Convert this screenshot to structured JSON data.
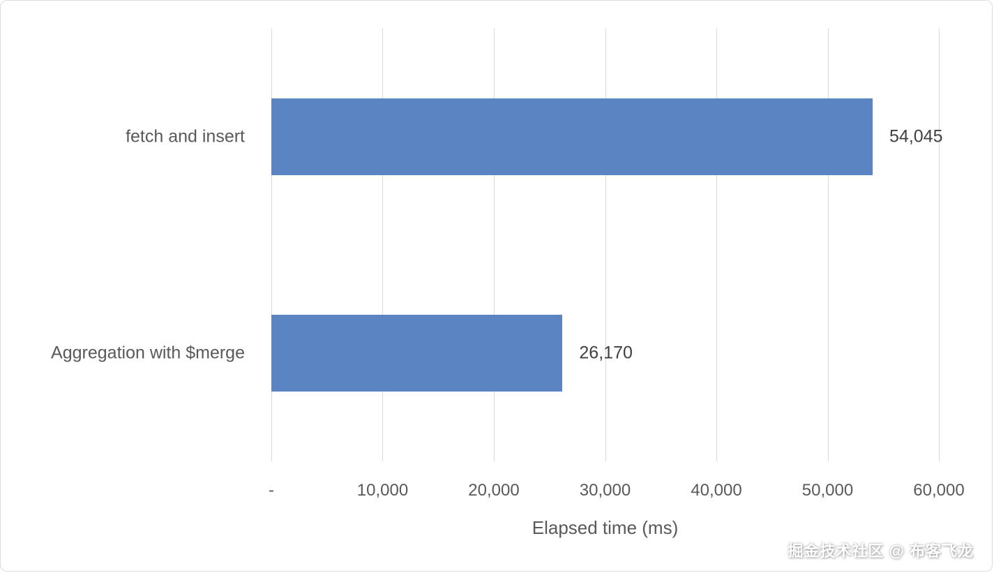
{
  "chart_data": {
    "type": "bar",
    "orientation": "horizontal",
    "title": "",
    "xlabel": "Elapsed time (ms)",
    "ylabel": "",
    "categories": [
      "fetch and insert",
      "Aggregation with $merge"
    ],
    "values": [
      54045,
      26170
    ],
    "value_labels": [
      "54,045",
      "26,170"
    ],
    "xlim": [
      0,
      60000
    ],
    "x_tick_values": [
      0,
      10000,
      20000,
      30000,
      40000,
      50000,
      60000
    ],
    "x_tick_labels": [
      "-",
      "10,000",
      "20,000",
      "30,000",
      "40,000",
      "50,000",
      "60,000"
    ],
    "grid": true,
    "legend": false,
    "bar_color": "#5B84C2",
    "grid_color": "#D9D9D9",
    "axis_text_color": "#595959",
    "value_text_color": "#404040"
  },
  "watermark": "掘金技术社区 @ 布客飞龙"
}
